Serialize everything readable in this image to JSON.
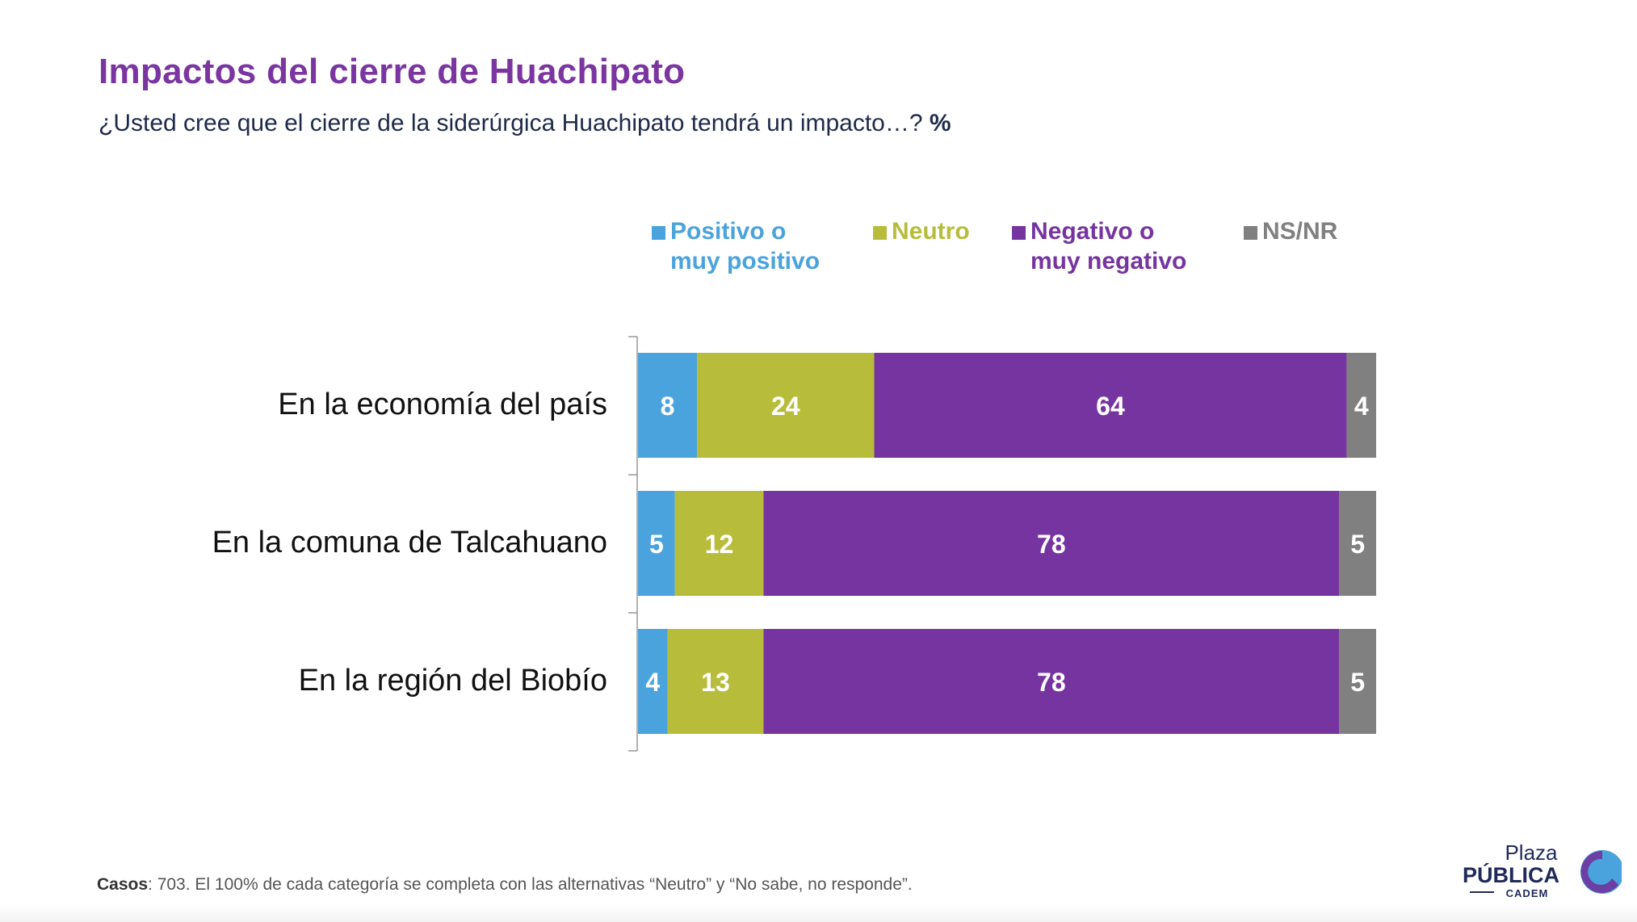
{
  "title": "Impactos del cierre de Huachipato",
  "subtitle": "¿Usted cree que el cierre de la siderúrgica Huachipato tendrá un impacto…?",
  "subtitle_unit": "%",
  "footnote_label": "Casos",
  "footnote_text": ": 703. El 100% de cada categoría se completa con las alternativas “Neutro” y “No sabe, no responde”.",
  "logo": {
    "line1": "Plaza",
    "line2": "PÚBLICA",
    "line3": "CADEM"
  },
  "chart_data": {
    "type": "bar",
    "orientation": "horizontal",
    "stacked": true,
    "categories": [
      "En la economía del país",
      "En la comuna de Talcahuano",
      "En la región del Biobío"
    ],
    "series": [
      {
        "name": "Positivo o muy positivo",
        "name_lines": [
          "Positivo o",
          "muy positivo"
        ],
        "color": "#4aa3dc",
        "values": [
          8,
          5,
          4
        ]
      },
      {
        "name": "Neutro",
        "name_lines": [
          "Neutro"
        ],
        "color": "#b7bd3b",
        "values": [
          24,
          12,
          13
        ]
      },
      {
        "name": "Negativo o muy negativo",
        "name_lines": [
          "Negativo o",
          "muy negativo"
        ],
        "color": "#7634a0",
        "values": [
          64,
          78,
          78
        ]
      },
      {
        "name": "NS/NR",
        "name_lines": [
          "NS/NR"
        ],
        "color": "#808080",
        "values": [
          4,
          5,
          5
        ]
      }
    ],
    "xlim": [
      0,
      100
    ],
    "unit": "%",
    "legend_position": "top",
    "data_labels": true,
    "grid": false
  }
}
